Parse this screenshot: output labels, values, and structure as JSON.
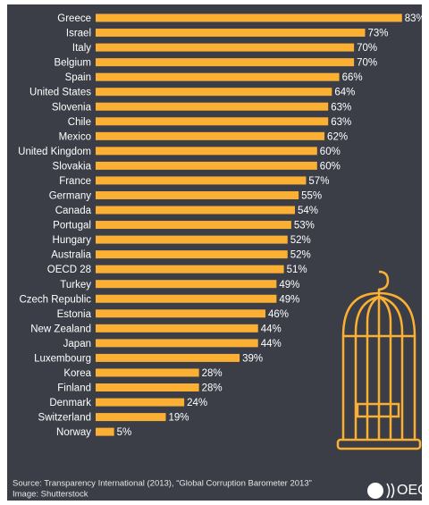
{
  "chart_data": {
    "type": "bar",
    "orientation": "horizontal",
    "categories": [
      "Greece",
      "Israel",
      "Italy",
      "Belgium",
      "Spain",
      "United States",
      "Slovenia",
      "Chile",
      "Mexico",
      "United Kingdom",
      "Slovakia",
      "France",
      "Germany",
      "Canada",
      "Portugal",
      "Hungary",
      "Australia",
      "OECD 28",
      "Turkey",
      "Czech Republic",
      "Estonia",
      "New Zealand",
      "Japan",
      "Luxembourg",
      "Korea",
      "Finland",
      "Denmark",
      "Switzerland",
      "Norway"
    ],
    "values": [
      83,
      73,
      70,
      70,
      66,
      64,
      63,
      63,
      62,
      60,
      60,
      57,
      55,
      54,
      53,
      52,
      52,
      51,
      49,
      49,
      46,
      44,
      44,
      39,
      28,
      28,
      24,
      19,
      5
    ],
    "value_labels": [
      "83%",
      "73%",
      "70%",
      "70%",
      "66%",
      "64%",
      "63%",
      "63%",
      "62%",
      "60%",
      "60%",
      "57%",
      "55%",
      "54%",
      "53%",
      "52%",
      "52%",
      "51%",
      "49%",
      "49%",
      "46%",
      "44%",
      "44%",
      "39%",
      "28%",
      "28%",
      "24%",
      "19%",
      "5%"
    ],
    "color": "#fbb034",
    "source": [
      "Source: Transparency International (2013), “Global Corruption Barometer 2013”",
      "Image: Shutterstock"
    ],
    "logo": "OECD"
  }
}
